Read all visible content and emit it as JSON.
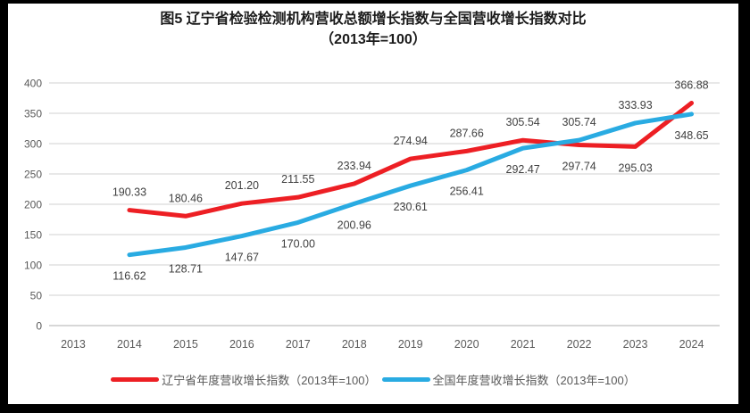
{
  "title": {
    "line1": "图5  辽宁省检验检测机构营收总额增长指数与全国营收增长指数对比",
    "line2": "（2013年=100）"
  },
  "chart_data": {
    "type": "line",
    "categories": [
      "2013",
      "2014",
      "2015",
      "2016",
      "2017",
      "2018",
      "2019",
      "2020",
      "2021",
      "2022",
      "2023",
      "2024"
    ],
    "series": [
      {
        "name": "辽宁省年度营收增长指数（2013年=100）",
        "color": "#ED1F24",
        "start_index": 1,
        "values": [
          190.33,
          180.46,
          201.2,
          211.55,
          233.94,
          274.94,
          287.66,
          305.54,
          297.74,
          295.03,
          366.88
        ],
        "label_positions": [
          "above",
          "above",
          "above",
          "above",
          "above",
          "above",
          "above",
          "above",
          "below",
          "below",
          "above"
        ]
      },
      {
        "name": "全国年度营收增长指数（2013年=100）",
        "color": "#29ABE2",
        "start_index": 1,
        "values": [
          116.62,
          128.71,
          147.67,
          170.0,
          200.96,
          230.61,
          256.41,
          292.47,
          305.74,
          333.93,
          348.65
        ],
        "label_positions": [
          "below",
          "below",
          "below",
          "below",
          "below",
          "below",
          "below",
          "below",
          "above",
          "above",
          "below"
        ]
      }
    ],
    "ylim": [
      0,
      400
    ],
    "ytick_step": 50,
    "grid": "horizontal",
    "legend_position": "bottom",
    "xlabel": "",
    "ylabel": ""
  },
  "colors": {
    "gridline": "#D9D9D9",
    "axis_line": "#BFBFBF",
    "tick_label": "#595959",
    "data_label": "#404040",
    "title_text": "#1a1a1a",
    "frame_border": "#000000"
  }
}
